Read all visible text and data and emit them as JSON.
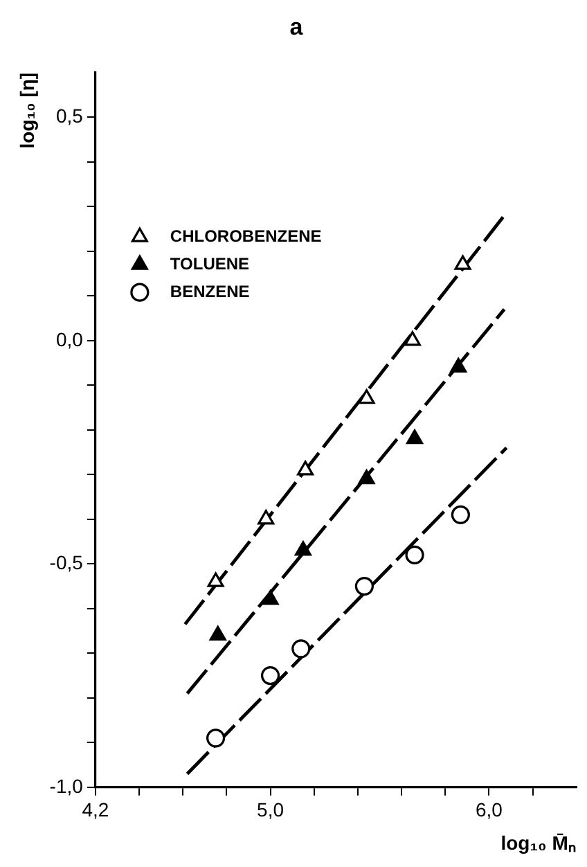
{
  "chart_data": {
    "type": "scatter",
    "title": "a",
    "xlabel": "log₁₀ M̄ₙ",
    "ylabel": "log₁₀ [η]",
    "xlim": [
      4.2,
      6.4
    ],
    "xticks": [
      {
        "value": 4.2,
        "label": "4,2"
      },
      {
        "value": 4.4,
        "label": null
      },
      {
        "value": 4.6,
        "label": null
      },
      {
        "value": 4.8,
        "label": null
      },
      {
        "value": 5.0,
        "label": "5,0"
      },
      {
        "value": 5.2,
        "label": null
      },
      {
        "value": 5.4,
        "label": null
      },
      {
        "value": 5.6,
        "label": null
      },
      {
        "value": 5.8,
        "label": null
      },
      {
        "value": 6.0,
        "label": "6,0"
      },
      {
        "value": 6.2,
        "label": null
      }
    ],
    "ylim": [
      -1.0,
      0.6
    ],
    "yticks": [
      {
        "value": -1.0,
        "label": "-1,0"
      },
      {
        "value": -0.9,
        "label": null
      },
      {
        "value": -0.8,
        "label": null
      },
      {
        "value": -0.7,
        "label": null
      },
      {
        "value": -0.6,
        "label": null
      },
      {
        "value": -0.5,
        "label": "-0,5"
      },
      {
        "value": -0.4,
        "label": null
      },
      {
        "value": -0.3,
        "label": null
      },
      {
        "value": -0.2,
        "label": null
      },
      {
        "value": -0.1,
        "label": null
      },
      {
        "value": 0.0,
        "label": "0,0"
      },
      {
        "value": 0.1,
        "label": null
      },
      {
        "value": 0.2,
        "label": null
      },
      {
        "value": 0.3,
        "label": null
      },
      {
        "value": 0.4,
        "label": null
      },
      {
        "value": 0.5,
        "label": "0,5"
      }
    ],
    "grid": false,
    "legend": "top left",
    "series": [
      {
        "name": "CHLOROBENZENE",
        "marker": "triangle-open",
        "color": "#000000",
        "x": [
          4.75,
          4.98,
          5.16,
          5.44,
          5.65,
          5.88
        ],
        "values": [
          -0.54,
          -0.4,
          -0.29,
          -0.13,
          0.0,
          0.17
        ]
      },
      {
        "name": "TOLUENE",
        "marker": "triangle",
        "color": "#000000",
        "x": [
          4.76,
          5.0,
          5.15,
          5.44,
          5.66,
          5.86
        ],
        "values": [
          -0.66,
          -0.58,
          -0.47,
          -0.31,
          -0.22,
          -0.06
        ]
      },
      {
        "name": "BENZENE",
        "marker": "circle-open",
        "color": "#000000",
        "x": [
          4.75,
          5.0,
          5.14,
          5.43,
          5.66,
          5.87
        ],
        "values": [
          -0.89,
          -0.75,
          -0.69,
          -0.55,
          -0.48,
          -0.39
        ]
      },
      {
        "type": "line",
        "marker": "none",
        "line_style": "dashed",
        "color": "#000000",
        "x": [
          4.61,
          6.07
        ],
        "values": [
          -0.635,
          0.28
        ]
      },
      {
        "type": "line",
        "marker": "none",
        "line_style": "dashed",
        "color": "#000000",
        "x": [
          4.62,
          6.07
        ],
        "values": [
          -0.79,
          0.07
        ]
      },
      {
        "type": "line",
        "marker": "none",
        "line_style": "dashed",
        "color": "#000000",
        "x": [
          4.62,
          6.08
        ],
        "values": [
          -0.97,
          -0.24
        ]
      }
    ]
  }
}
